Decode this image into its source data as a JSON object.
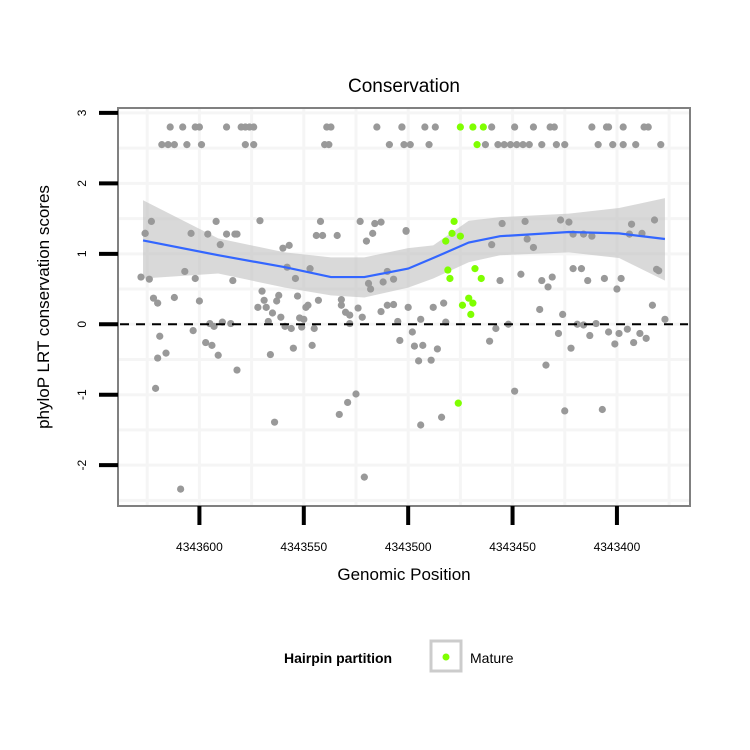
{
  "chart_data": {
    "type": "scatter",
    "title": "Conservation",
    "xlabel": "Genomic Position",
    "ylabel": "phyloP LRT conservation scores",
    "xlim": [
      4343639,
      4343365
    ],
    "x_reversed": true,
    "ylim": [
      -2.58,
      3.07
    ],
    "x_ticks": [
      4343600,
      4343550,
      4343500,
      4343450,
      4343400
    ],
    "x_tick_labels": [
      "4343600",
      "4343550",
      "4343500",
      "4343450",
      "4343400"
    ],
    "y_ticks": [
      3,
      2,
      1,
      0,
      -1,
      -2
    ],
    "y_tick_labels": [
      "3",
      "2",
      "1",
      "0",
      "-1",
      "-2"
    ],
    "grid": true,
    "reference_line": {
      "y": 0,
      "style": "dashed",
      "color": "#000000"
    },
    "legend": {
      "title": "Hairpin partition",
      "placement": "bottom",
      "entries": [
        {
          "label": "Mature",
          "color": "#7FFF00"
        }
      ]
    },
    "series": [
      {
        "name": "",
        "color": "#999999",
        "points": [
          [
            4343614,
            2.8
          ],
          [
            4343608,
            2.8
          ],
          [
            4343602,
            2.8
          ],
          [
            4343600,
            2.8
          ],
          [
            4343587,
            2.8
          ],
          [
            4343580,
            2.8
          ],
          [
            4343578,
            2.8
          ],
          [
            4343576,
            2.8
          ],
          [
            4343574,
            2.8
          ],
          [
            4343539,
            2.8
          ],
          [
            4343537,
            2.8
          ],
          [
            4343515,
            2.8
          ],
          [
            4343503,
            2.8
          ],
          [
            4343503,
            2.8
          ],
          [
            4343492,
            2.8
          ],
          [
            4343487,
            2.8
          ],
          [
            4343460,
            2.8
          ],
          [
            4343449,
            2.8
          ],
          [
            4343440,
            2.8
          ],
          [
            4343432,
            2.8
          ],
          [
            4343430,
            2.8
          ],
          [
            4343412,
            2.8
          ],
          [
            4343405,
            2.8
          ],
          [
            4343404,
            2.8
          ],
          [
            4343397,
            2.8
          ],
          [
            4343387,
            2.8
          ],
          [
            4343385,
            2.8
          ],
          [
            4343618,
            2.55
          ],
          [
            4343615,
            2.55
          ],
          [
            4343612,
            2.55
          ],
          [
            4343606,
            2.55
          ],
          [
            4343599,
            2.55
          ],
          [
            4343578,
            2.55
          ],
          [
            4343574,
            2.55
          ],
          [
            4343540,
            2.55
          ],
          [
            4343538,
            2.55
          ],
          [
            4343509,
            2.55
          ],
          [
            4343502,
            2.55
          ],
          [
            4343499,
            2.55
          ],
          [
            4343490,
            2.55
          ],
          [
            4343463,
            2.55
          ],
          [
            4343457,
            2.55
          ],
          [
            4343454,
            2.55
          ],
          [
            4343451,
            2.55
          ],
          [
            4343448,
            2.55
          ],
          [
            4343445,
            2.55
          ],
          [
            4343442,
            2.55
          ],
          [
            4343436,
            2.55
          ],
          [
            4343429,
            2.55
          ],
          [
            4343425,
            2.55
          ],
          [
            4343409,
            2.55
          ],
          [
            4343402,
            2.55
          ],
          [
            4343397,
            2.55
          ],
          [
            4343391,
            2.55
          ],
          [
            4343379,
            2.55
          ],
          [
            4343623,
            1.46
          ],
          [
            4343626,
            1.29
          ],
          [
            4343626,
            1.29
          ],
          [
            4343628,
            0.67
          ],
          [
            4343624,
            0.64
          ],
          [
            4343622,
            0.37
          ],
          [
            4343620,
            0.3
          ],
          [
            4343619,
            -0.17
          ],
          [
            4343620,
            -0.48
          ],
          [
            4343616,
            -0.41
          ],
          [
            4343621,
            -0.91
          ],
          [
            4343612,
            0.38
          ],
          [
            4343607,
            0.75
          ],
          [
            4343604,
            1.29
          ],
          [
            4343602,
            0.65
          ],
          [
            4343600,
            0.33
          ],
          [
            4343603,
            -0.09
          ],
          [
            4343609,
            -2.34
          ],
          [
            4343596,
            1.28
          ],
          [
            4343592,
            1.46
          ],
          [
            4343590,
            1.13
          ],
          [
            4343587,
            1.28
          ],
          [
            4343583,
            1.28
          ],
          [
            4343582,
            1.28
          ],
          [
            4343584,
            0.62
          ],
          [
            4343595,
            0.01
          ],
          [
            4343593,
            -0.03
          ],
          [
            4343589,
            0.03
          ],
          [
            4343585,
            0.01
          ],
          [
            4343597,
            -0.26
          ],
          [
            4343594,
            -0.3
          ],
          [
            4343591,
            -0.44
          ],
          [
            4343582,
            -0.65
          ],
          [
            4343571,
            1.47
          ],
          [
            4343570,
            0.47
          ],
          [
            4343569,
            0.34
          ],
          [
            4343572,
            0.24
          ],
          [
            4343568,
            0.24
          ],
          [
            4343565,
            0.16
          ],
          [
            4343567,
            0.04
          ],
          [
            4343561,
            0.1
          ],
          [
            4343563,
            0.33
          ],
          [
            4343562,
            0.41
          ],
          [
            4343566,
            -0.43
          ],
          [
            4343564,
            -1.39
          ],
          [
            4343560,
            1.08
          ],
          [
            4343557,
            1.12
          ],
          [
            4343558,
            0.81
          ],
          [
            4343554,
            0.65
          ],
          [
            4343553,
            0.4
          ],
          [
            4343559,
            -0.03
          ],
          [
            4343556,
            -0.06
          ],
          [
            4343555,
            -0.34
          ],
          [
            4343552,
            0.09
          ],
          [
            4343550,
            0.07
          ],
          [
            4343551,
            -0.04
          ],
          [
            4343549,
            0.24
          ],
          [
            4343548,
            0.27
          ],
          [
            4343547,
            0.79
          ],
          [
            4343543,
            0.34
          ],
          [
            4343545,
            -0.06
          ],
          [
            4343546,
            -0.3
          ],
          [
            4343542,
            1.46
          ],
          [
            4343544,
            1.26
          ],
          [
            4343541,
            1.26
          ],
          [
            4343534,
            1.26
          ],
          [
            4343533,
            -1.28
          ],
          [
            4343529,
            -1.11
          ],
          [
            4343525,
            -0.99
          ],
          [
            4343521,
            -2.17
          ],
          [
            4343532,
            0.35
          ],
          [
            4343532,
            0.27
          ],
          [
            4343530,
            0.17
          ],
          [
            4343528,
            0.13
          ],
          [
            4343524,
            0.23
          ],
          [
            4343522,
            0.1
          ],
          [
            4343528,
            0.01
          ],
          [
            4343523,
            1.46
          ],
          [
            4343516,
            1.43
          ],
          [
            4343513,
            1.45
          ],
          [
            4343517,
            1.29
          ],
          [
            4343520,
            1.18
          ],
          [
            4343519,
            0.58
          ],
          [
            4343518,
            0.5
          ],
          [
            4343512,
            0.6
          ],
          [
            4343510,
            0.75
          ],
          [
            4343507,
            0.64
          ],
          [
            4343513,
            0.18
          ],
          [
            4343510,
            0.27
          ],
          [
            4343507,
            0.28
          ],
          [
            4343505,
            0.04
          ],
          [
            4343504,
            -0.23
          ],
          [
            4343501,
            1.33
          ],
          [
            4343501,
            1.32
          ],
          [
            4343500,
            0.24
          ],
          [
            4343498,
            -0.11
          ],
          [
            4343497,
            -0.31
          ],
          [
            4343493,
            -0.3
          ],
          [
            4343495,
            -0.52
          ],
          [
            4343489,
            -0.51
          ],
          [
            4343486,
            -0.35
          ],
          [
            4343494,
            -1.43
          ],
          [
            4343484,
            -1.32
          ],
          [
            4343488,
            0.24
          ],
          [
            4343483,
            0.3
          ],
          [
            4343494,
            0.07
          ],
          [
            4343482,
            0.03
          ],
          [
            4343455,
            1.43
          ],
          [
            4343444,
            1.46
          ],
          [
            4343427,
            1.48
          ],
          [
            4343423,
            1.45
          ],
          [
            4343393,
            1.42
          ],
          [
            4343382,
            1.48
          ],
          [
            4343460,
            1.13
          ],
          [
            4343443,
            1.21
          ],
          [
            4343440,
            1.09
          ],
          [
            4343421,
            1.28
          ],
          [
            4343416,
            1.28
          ],
          [
            4343412,
            1.25
          ],
          [
            4343394,
            1.28
          ],
          [
            4343388,
            1.29
          ],
          [
            4343381,
            0.78
          ],
          [
            4343380,
            0.76
          ],
          [
            4343456,
            0.62
          ],
          [
            4343446,
            0.71
          ],
          [
            4343436,
            0.62
          ],
          [
            4343431,
            0.67
          ],
          [
            4343433,
            0.53
          ],
          [
            4343421,
            0.79
          ],
          [
            4343417,
            0.79
          ],
          [
            4343414,
            0.62
          ],
          [
            4343406,
            0.65
          ],
          [
            4343398,
            0.65
          ],
          [
            4343400,
            0.5
          ],
          [
            4343437,
            0.21
          ],
          [
            4343426,
            0.14
          ],
          [
            4343383,
            0.27
          ],
          [
            4343377,
            0.07
          ],
          [
            4343452,
            0.0
          ],
          [
            4343458,
            -0.06
          ],
          [
            4343461,
            -0.24
          ],
          [
            4343428,
            -0.13
          ],
          [
            4343422,
            -0.34
          ],
          [
            4343419,
            0.0
          ],
          [
            4343416,
            -0.01
          ],
          [
            4343410,
            0.01
          ],
          [
            4343413,
            -0.16
          ],
          [
            4343404,
            -0.11
          ],
          [
            4343399,
            -0.13
          ],
          [
            4343395,
            -0.07
          ],
          [
            4343389,
            -0.13
          ],
          [
            4343401,
            -0.28
          ],
          [
            4343392,
            -0.26
          ],
          [
            4343386,
            -0.2
          ],
          [
            4343434,
            -0.58
          ],
          [
            4343449,
            -0.95
          ],
          [
            4343425,
            -1.23
          ],
          [
            4343407,
            -1.21
          ]
        ]
      },
      {
        "name": "Mature",
        "color": "#7FFF00",
        "points": [
          [
            4343475,
            2.8
          ],
          [
            4343469,
            2.8
          ],
          [
            4343464,
            2.8
          ],
          [
            4343467,
            2.55
          ],
          [
            4343478,
            1.46
          ],
          [
            4343479,
            1.29
          ],
          [
            4343475,
            1.25
          ],
          [
            4343482,
            1.18
          ],
          [
            4343481,
            0.77
          ],
          [
            4343480,
            0.65
          ],
          [
            4343468,
            0.79
          ],
          [
            4343465,
            0.65
          ],
          [
            4343471,
            0.37
          ],
          [
            4343474,
            0.27
          ],
          [
            4343469,
            0.3
          ],
          [
            4343470,
            0.14
          ],
          [
            4343476,
            -1.12
          ]
        ]
      }
    ],
    "smooth": {
      "method": "loess",
      "color": "#3366FF",
      "x": [
        4343627,
        4343591,
        4343559,
        4343537,
        4343521,
        4343500,
        4343488,
        4343471,
        4343456,
        4343423,
        4343399,
        4343377
      ],
      "y": [
        1.19,
        0.98,
        0.81,
        0.67,
        0.67,
        0.79,
        0.94,
        1.16,
        1.25,
        1.31,
        1.29,
        1.21
      ],
      "upper": [
        1.76,
        1.22,
        1.02,
        0.95,
        0.95,
        1.08,
        1.12,
        1.47,
        1.52,
        1.57,
        1.65,
        1.79
      ],
      "lower": [
        0.65,
        0.72,
        0.52,
        0.41,
        0.38,
        0.52,
        0.65,
        0.88,
        0.98,
        1.02,
        0.94,
        0.62
      ]
    }
  }
}
